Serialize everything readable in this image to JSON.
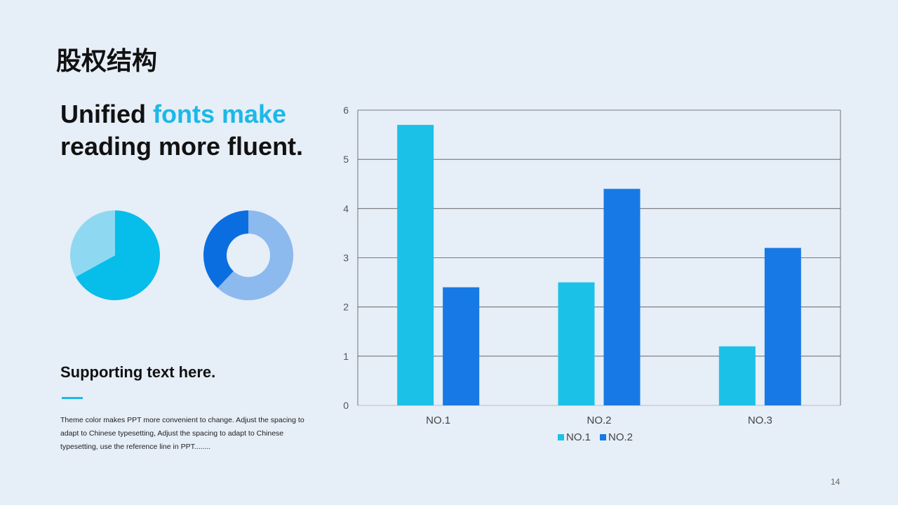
{
  "header": {
    "title": "股权结构"
  },
  "headline": {
    "part1": "Unified ",
    "accent": "fonts make",
    "line2": "reading more fluent."
  },
  "support": {
    "title": "Supporting text here.",
    "body": "Theme color makes PPT more convenient  to change.  Adjust the spacing to adapt to Chinese typesetting,  Adjust the spacing to adapt to Chinese typesetting,  use the reference line in PPT........"
  },
  "page_number": "14",
  "colors": {
    "accent": "#1cb8e8",
    "series1": "#1cc1e8",
    "series2": "#1779e5",
    "pie_main": "#07bdea",
    "pie_light": "#8fd8f2",
    "donut_dark": "#0a6ee0",
    "donut_light": "#8cb9ee"
  },
  "chart_data": [
    {
      "type": "bar",
      "categories": [
        "NO.1",
        "NO.2",
        "NO.3"
      ],
      "series": [
        {
          "name": "NO.1",
          "values": [
            5.7,
            2.5,
            1.2
          ],
          "color": "#1cc1e8"
        },
        {
          "name": "NO.2",
          "values": [
            2.4,
            4.4,
            3.2
          ],
          "color": "#1779e5"
        }
      ],
      "ylim": [
        0,
        6
      ],
      "yticks": [
        0,
        1,
        2,
        3,
        4,
        5,
        6
      ],
      "grid": true,
      "legend": "bottom"
    },
    {
      "type": "pie",
      "slices": [
        {
          "value": 67,
          "color": "#07bdea"
        },
        {
          "value": 33,
          "color": "#8fd8f2"
        }
      ]
    },
    {
      "type": "pie",
      "donut": true,
      "slices": [
        {
          "value": 62,
          "color": "#8cb9ee"
        },
        {
          "value": 38,
          "color": "#0a6ee0"
        }
      ]
    }
  ]
}
